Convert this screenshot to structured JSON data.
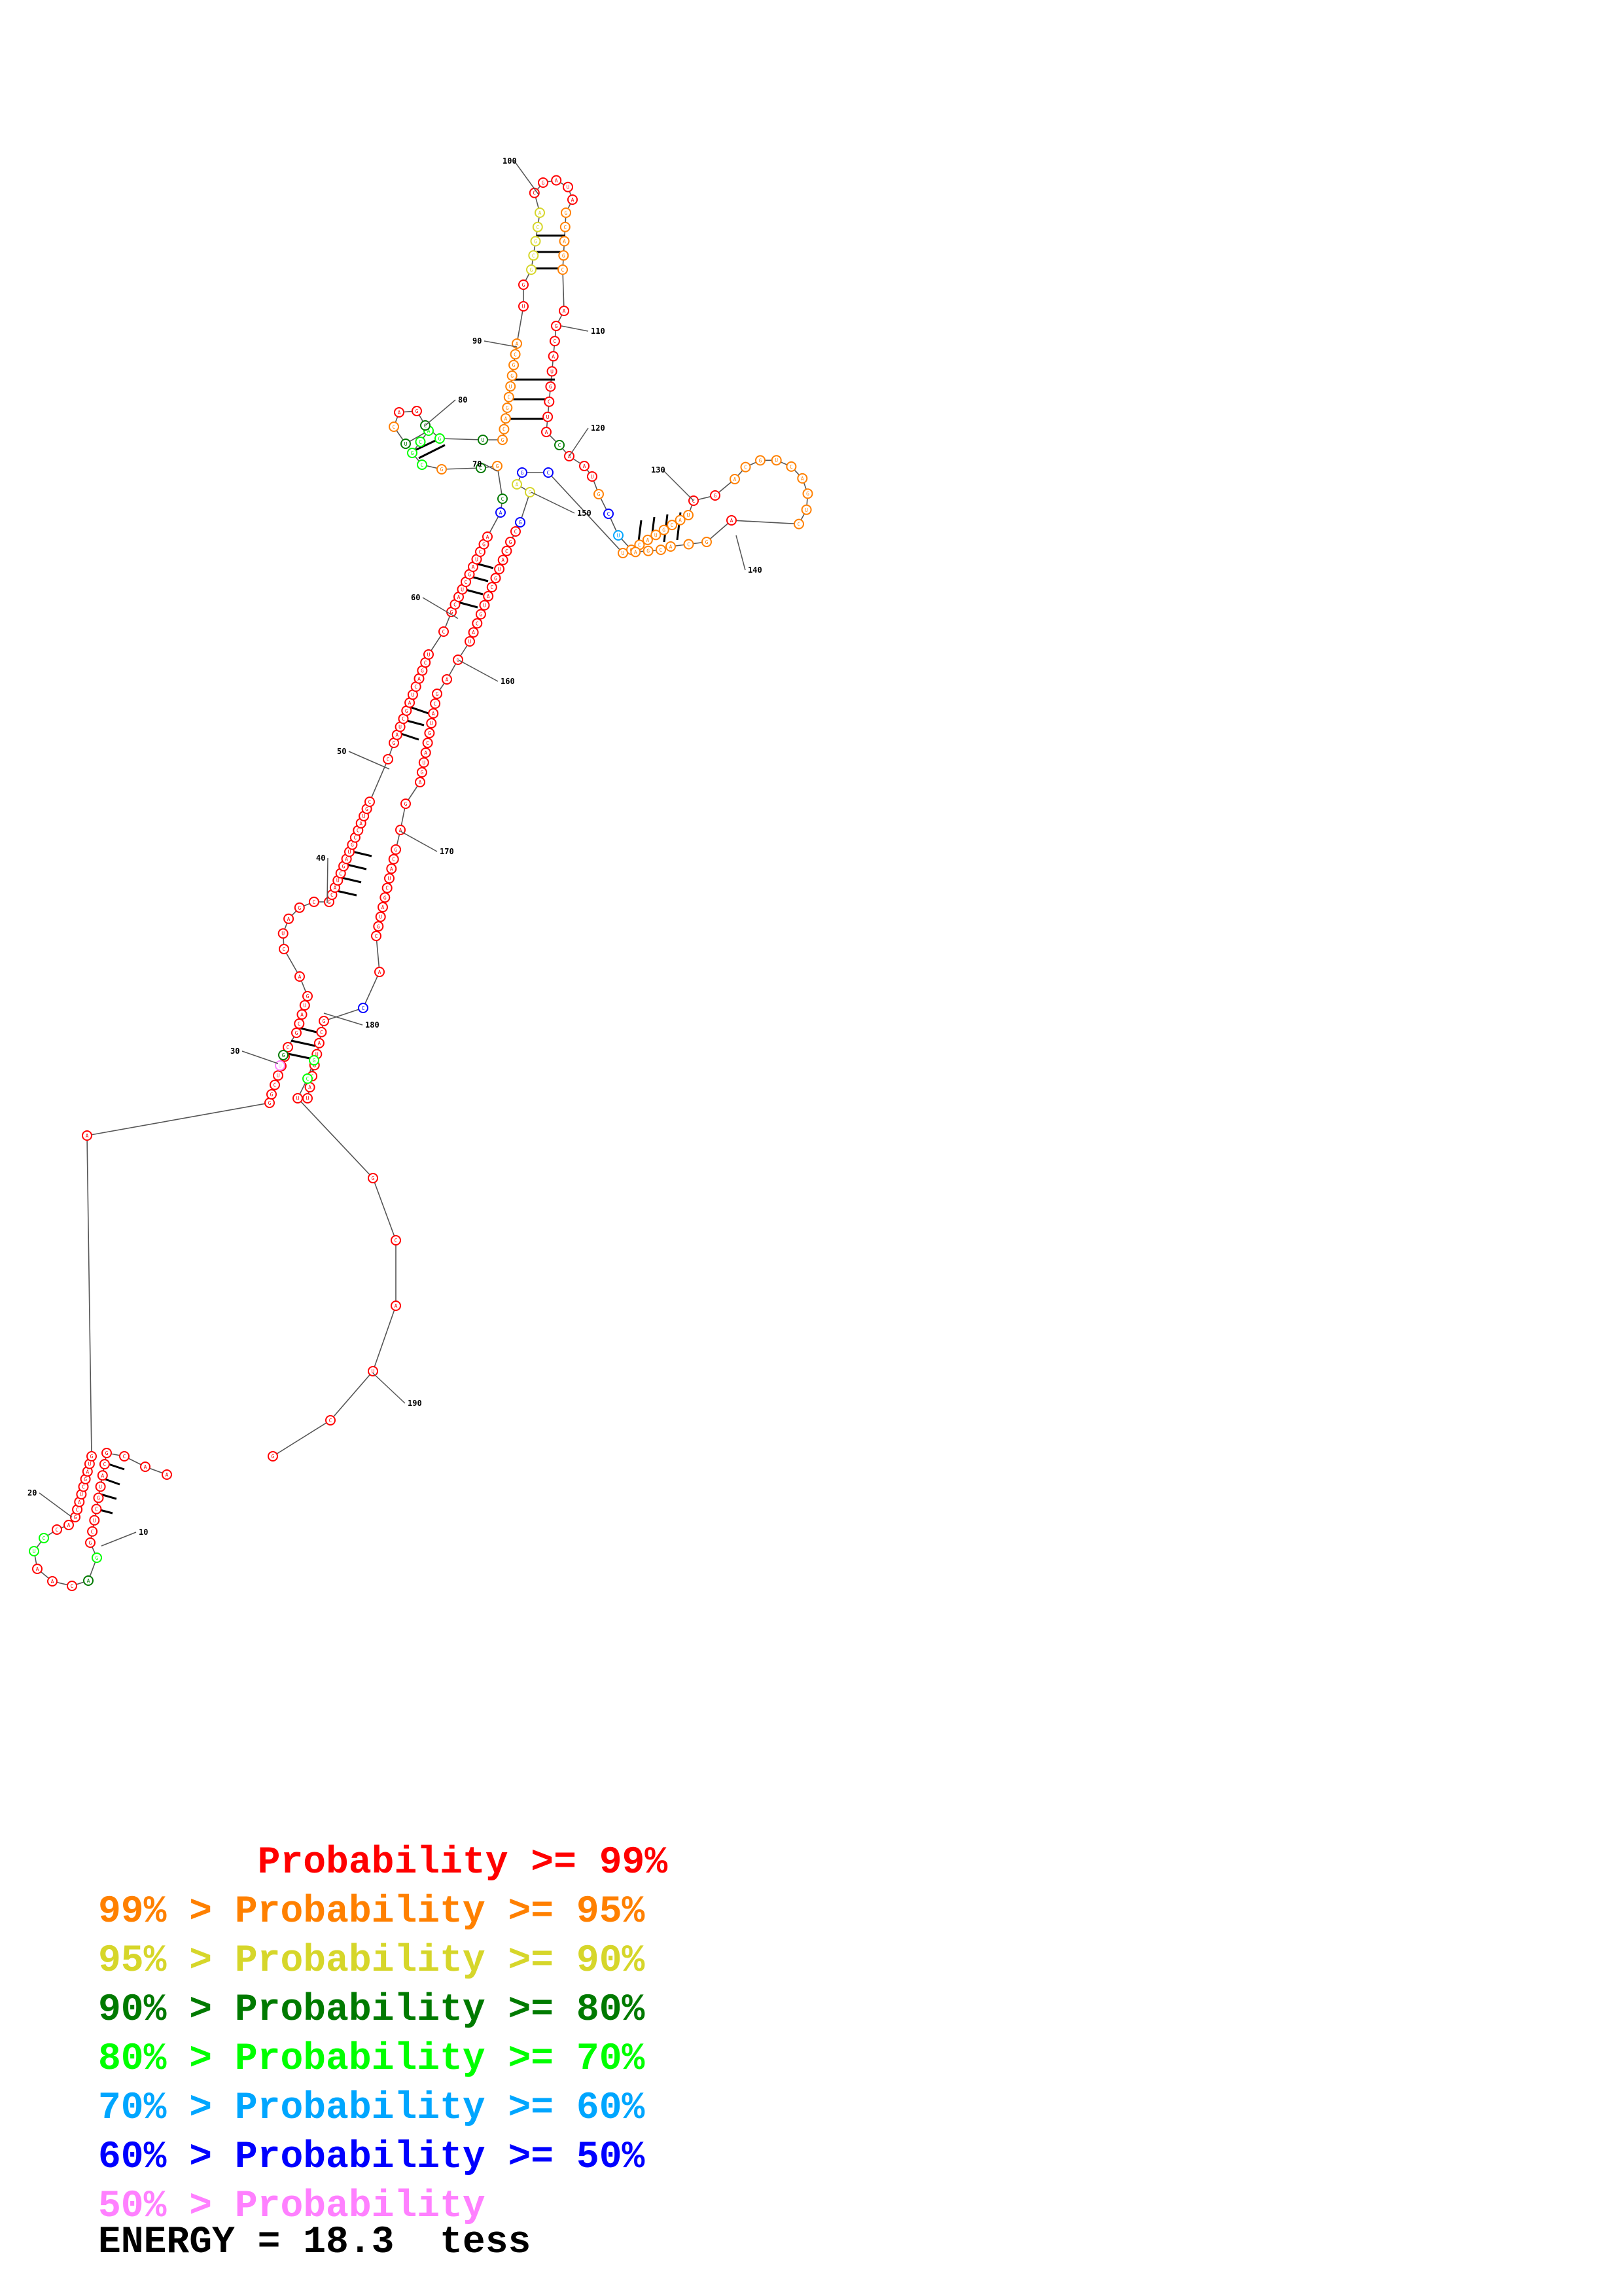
{
  "colors": {
    "p99": "#ff0000",
    "p95": "#ff8000",
    "p90": "#d6d62a",
    "p80": "#007a00",
    "p70": "#00ff00",
    "p60": "#00a6ff",
    "p50": "#0000ff",
    "plow": "#ff80ff"
  },
  "position_labels": [
    "10",
    "20",
    "30",
    "40",
    "50",
    "60",
    "70",
    "80",
    "90",
    "100",
    "110",
    "120",
    "130",
    "140",
    "150",
    "160",
    "170",
    "180",
    "190"
  ],
  "legend": [
    {
      "text": "       Probability >= 99%",
      "color": "#ff0000"
    },
    {
      "text": "99% > Probability >= 95%",
      "color": "#ff8000"
    },
    {
      "text": "95% > Probability >= 90%",
      "color": "#d6d62a"
    },
    {
      "text": "90% > Probability >= 80%",
      "color": "#007a00"
    },
    {
      "text": "80% > Probability >= 70%",
      "color": "#00ff00"
    },
    {
      "text": "70% > Probability >= 60%",
      "color": "#00a6ff"
    },
    {
      "text": "60% > Probability >= 50%",
      "color": "#0000ff"
    },
    {
      "text": "50% > Probability",
      "color": "#ff80ff"
    }
  ],
  "energy": "ENERGY = 18.3  tess"
}
